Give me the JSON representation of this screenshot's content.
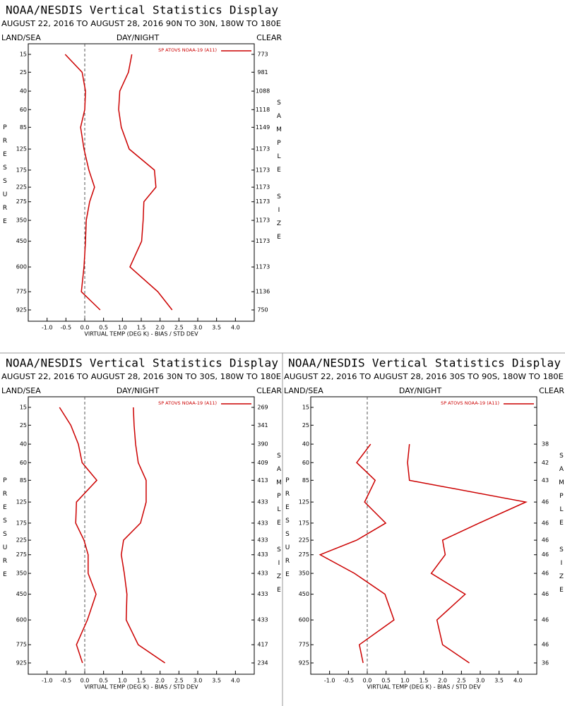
{
  "chart_data": [
    {
      "type": "line",
      "title": "NOAA/NESDIS Vertical Statistics Display",
      "subtitle": "AUGUST 22, 2016 TO AUGUST 28, 2016 90N TO 30N, 180W TO 180E",
      "left_header": "LAND/SEA",
      "center_header": "DAY/NIGHT",
      "right_header": "CLEAR",
      "ylabel": "PRESSURE",
      "y2label": "SAMPLE SIZE",
      "xlabel": "VIRTUAL TEMP (DEG K) - BIAS / STD DEV",
      "y": [
        15,
        25,
        40,
        60,
        85,
        125,
        175,
        225,
        275,
        350,
        450,
        600,
        775,
        925
      ],
      "ylim": [
        15,
        925
      ],
      "yticks": [
        15,
        25,
        40,
        60,
        85,
        125,
        175,
        225,
        275,
        350,
        450,
        600,
        775,
        925
      ],
      "yscale_exponent": 0.286,
      "xlim": [
        -1.5,
        4.5
      ],
      "xticks": [
        {
          "value": -1,
          "label": "-1.0"
        },
        {
          "value": -0.5,
          "label": "-0.5"
        },
        {
          "value": 0,
          "label": "0.0"
        },
        {
          "value": 0.5,
          "label": "0.5"
        },
        {
          "value": 1,
          "label": "1.0"
        },
        {
          "value": 1.5,
          "label": "1.5"
        },
        {
          "value": 2,
          "label": "2.0"
        },
        {
          "value": 2.5,
          "label": "2.5"
        },
        {
          "value": 3,
          "label": "3.0"
        },
        {
          "value": 3.5,
          "label": "3.5"
        },
        {
          "value": 4,
          "label": "4.0"
        }
      ],
      "series": [
        {
          "name": "SP ATOVS NOAA-19 (A11)",
          "color": "#cc0000",
          "bias": [
            -0.52,
            -0.07,
            0.02,
            0.0,
            -0.11,
            -0.02,
            0.11,
            0.26,
            0.13,
            0.04,
            0.02,
            -0.02,
            -0.09,
            0.41
          ],
          "std_dev": [
            1.25,
            1.16,
            0.93,
            0.9,
            0.97,
            1.18,
            1.85,
            1.89,
            1.57,
            1.55,
            1.51,
            1.2,
            1.94,
            2.32
          ]
        }
      ],
      "sample_size": [
        773,
        981,
        1088,
        1118,
        1149,
        1173,
        1173,
        1173,
        1173,
        1173,
        1173,
        1173,
        1136,
        750
      ]
    },
    {
      "type": "line",
      "title": "NOAA/NESDIS Vertical Statistics Display",
      "subtitle": "AUGUST 22, 2016 TO AUGUST 28, 2016 30N TO 30S, 180W TO 180E",
      "left_header": "LAND/SEA",
      "center_header": "DAY/NIGHT",
      "right_header": "CLEAR",
      "ylabel": "PRESSURE",
      "y2label": "SAMPLE SIZE",
      "xlabel": "VIRTUAL TEMP (DEG K) - BIAS / STD DEV",
      "y": [
        15,
        25,
        40,
        60,
        85,
        125,
        175,
        225,
        275,
        350,
        450,
        600,
        775,
        925
      ],
      "ylim": [
        15,
        925
      ],
      "yticks": [
        15,
        25,
        40,
        60,
        85,
        125,
        175,
        225,
        275,
        350,
        450,
        600,
        775,
        925
      ],
      "yscale_exponent": 0.286,
      "xlim": [
        -1.5,
        4.5
      ],
      "xticks": [
        {
          "value": -1,
          "label": "-1.0"
        },
        {
          "value": -0.5,
          "label": "-0.5"
        },
        {
          "value": 0,
          "label": "0.0"
        },
        {
          "value": 0.5,
          "label": "0.5"
        },
        {
          "value": 1,
          "label": "1.0"
        },
        {
          "value": 1.5,
          "label": "1.5"
        },
        {
          "value": 2,
          "label": "2.0"
        },
        {
          "value": 2.5,
          "label": "2.5"
        },
        {
          "value": 3,
          "label": "3.0"
        },
        {
          "value": 3.5,
          "label": "3.5"
        },
        {
          "value": 4,
          "label": "4.0"
        }
      ],
      "series": [
        {
          "name": "SP ATOVS NOAA-19 (A11)",
          "color": "#cc0000",
          "bias": [
            -0.67,
            -0.37,
            -0.17,
            -0.07,
            0.32,
            -0.22,
            -0.24,
            -0.02,
            0.09,
            0.09,
            0.3,
            0.07,
            -0.22,
            -0.06
          ],
          "std_dev": [
            1.29,
            1.31,
            1.35,
            1.42,
            1.63,
            1.63,
            1.48,
            1.03,
            0.97,
            1.05,
            1.12,
            1.1,
            1.42,
            2.13
          ]
        }
      ],
      "sample_size": [
        269,
        341,
        390,
        409,
        413,
        433,
        433,
        433,
        433,
        433,
        433,
        433,
        417,
        234
      ]
    },
    {
      "type": "line",
      "title": "NOAA/NESDIS Vertical Statistics Display",
      "subtitle": "AUGUST 22, 2016 TO AUGUST 28, 2016 30S TO 90S, 180W TO 180E",
      "left_header": "LAND/SEA",
      "center_header": "DAY/NIGHT",
      "right_header": "CLEAR",
      "ylabel": "PRESSURE",
      "y2label": "SAMPLE SIZE",
      "xlabel": "VIRTUAL TEMP (DEG K) - BIAS / STD DEV",
      "y": [
        15,
        25,
        40,
        60,
        85,
        125,
        175,
        225,
        275,
        350,
        450,
        600,
        775,
        925
      ],
      "ylim": [
        15,
        925
      ],
      "yticks": [
        15,
        25,
        40,
        60,
        85,
        125,
        175,
        225,
        275,
        350,
        450,
        600,
        775,
        925
      ],
      "yscale_exponent": 0.286,
      "xlim": [
        -1.5,
        4.5
      ],
      "xticks": [
        {
          "value": -1,
          "label": "-1.0"
        },
        {
          "value": -0.5,
          "label": "-0.5"
        },
        {
          "value": 0,
          "label": "0.0"
        },
        {
          "value": 0.5,
          "label": "0.5"
        },
        {
          "value": 1,
          "label": "1.0"
        },
        {
          "value": 1.5,
          "label": "1.5"
        },
        {
          "value": 2,
          "label": "2.0"
        },
        {
          "value": 2.5,
          "label": "2.5"
        },
        {
          "value": 3,
          "label": "3.0"
        },
        {
          "value": 3.5,
          "label": "3.5"
        },
        {
          "value": 4,
          "label": "4.0"
        }
      ],
      "series": [
        {
          "name": "SP ATOVS NOAA-19 (A11)",
          "color": "#cc0000",
          "bias": [
            null,
            null,
            0.09,
            -0.28,
            0.21,
            -0.07,
            0.49,
            -0.28,
            -1.25,
            -0.34,
            0.47,
            0.71,
            -0.21,
            -0.11
          ],
          "std_dev": [
            null,
            null,
            1.12,
            1.07,
            1.12,
            4.21,
            2.97,
            2.0,
            2.07,
            1.7,
            2.6,
            1.85,
            2.0,
            2.71
          ]
        }
      ],
      "sample_size": [
        null,
        null,
        38,
        42,
        43,
        46,
        46,
        46,
        46,
        46,
        46,
        46,
        46,
        36
      ]
    }
  ]
}
